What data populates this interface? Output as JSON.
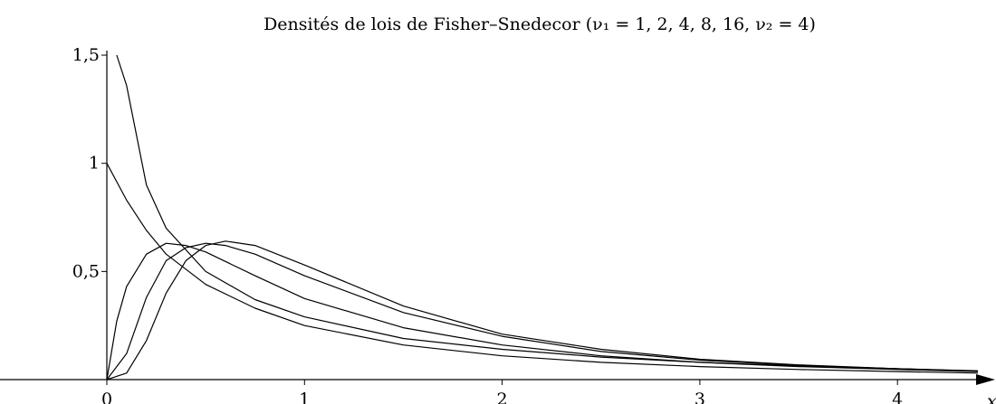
{
  "chart_data": {
    "type": "line",
    "title": "Densités de lois de Fisher–Snedecor (ν₁ = 1, 2, 4, 8, 16, ν₂ = 4)",
    "xlabel": "x",
    "ylabel": "",
    "xlim": [
      0,
      4.5
    ],
    "ylim": [
      0,
      1.5
    ],
    "grid": false,
    "x_ticks": [
      {
        "value": 0,
        "label": "0"
      },
      {
        "value": 1,
        "label": "1"
      },
      {
        "value": 2,
        "label": "2"
      },
      {
        "value": 3,
        "label": "3"
      },
      {
        "value": 4,
        "label": "4"
      }
    ],
    "y_ticks": [
      {
        "value": 0.5,
        "label": "0,5"
      },
      {
        "value": 1,
        "label": "1"
      },
      {
        "value": 1.5,
        "label": "1,5"
      }
    ],
    "series": [
      {
        "x": [
          0.05,
          0.1,
          0.2,
          0.3,
          0.5,
          0.75,
          1,
          1.5,
          2,
          2.5,
          3,
          3.5,
          4,
          4.5
        ],
        "y": [
          1.5,
          1.36,
          0.9,
          0.7,
          0.5,
          0.37,
          0.29,
          0.19,
          0.14,
          0.104,
          0.08,
          0.063,
          0.05,
          0.041
        ]
      },
      {
        "x": [
          0,
          0.1,
          0.2,
          0.3,
          0.5,
          0.75,
          1,
          1.5,
          2,
          2.5,
          3,
          3.5,
          4,
          4.5
        ],
        "y": [
          1.0,
          0.83,
          0.69,
          0.58,
          0.44,
          0.33,
          0.25,
          0.16,
          0.11,
          0.08,
          0.06,
          0.047,
          0.037,
          0.03
        ]
      },
      {
        "x": [
          0,
          0.05,
          0.1,
          0.2,
          0.3,
          0.4,
          0.5,
          0.75,
          1,
          1.5,
          2,
          2.5,
          3,
          3.5,
          4,
          4.5
        ],
        "y": [
          0,
          0.27,
          0.43,
          0.58,
          0.63,
          0.62,
          0.59,
          0.48,
          0.375,
          0.24,
          0.16,
          0.11,
          0.08,
          0.06,
          0.047,
          0.037
        ]
      },
      {
        "x": [
          0,
          0.1,
          0.2,
          0.3,
          0.4,
          0.5,
          0.6,
          0.75,
          1,
          1.5,
          2,
          2.5,
          3,
          3.5,
          4,
          4.5
        ],
        "y": [
          0,
          0.12,
          0.38,
          0.55,
          0.61,
          0.63,
          0.62,
          0.58,
          0.48,
          0.31,
          0.2,
          0.13,
          0.09,
          0.066,
          0.05,
          0.039
        ]
      },
      {
        "x": [
          0,
          0.1,
          0.2,
          0.3,
          0.4,
          0.5,
          0.6,
          0.75,
          1,
          1.5,
          2,
          2.5,
          3,
          3.5,
          4,
          4.5
        ],
        "y": [
          0,
          0.03,
          0.18,
          0.4,
          0.55,
          0.62,
          0.64,
          0.62,
          0.53,
          0.34,
          0.21,
          0.14,
          0.094,
          0.068,
          0.05,
          0.039
        ]
      }
    ]
  }
}
